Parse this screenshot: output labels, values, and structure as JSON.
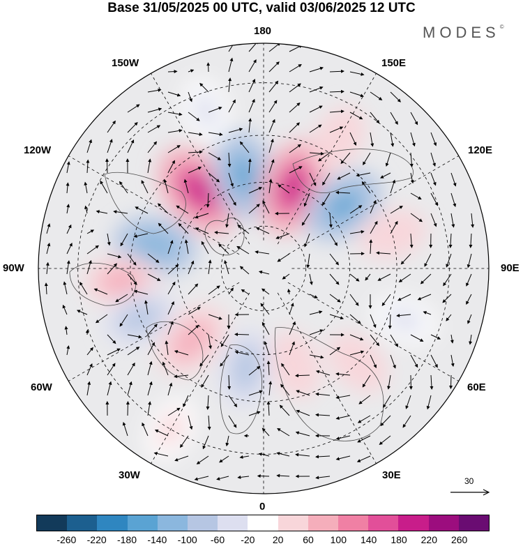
{
  "title": "Base 31/05/2025 00 UTC, valid 03/06/2025 12 UTC",
  "brand": "MODES",
  "brand_mark": "©",
  "longitude_labels": {
    "n180": "180",
    "w150": "150W",
    "e150": "150E",
    "w120": "120W",
    "e120": "120E",
    "w90": "90W",
    "e90": "90E",
    "w60": "60W",
    "e60": "60E",
    "w30": "30W",
    "e30": "30E",
    "s0": "0"
  },
  "reference_vector": {
    "label": "30"
  },
  "colorbar": {
    "colors": [
      "#123a5a",
      "#1c5f8f",
      "#2f86c0",
      "#5aa3d3",
      "#8bb7de",
      "#b6c6e3",
      "#dddff0",
      "#ffffff",
      "#f8d6da",
      "#f5aebb",
      "#f080a4",
      "#e24f99",
      "#c81d8a",
      "#9c0d7e",
      "#6a0c72"
    ],
    "ticks": [
      "-260",
      "-220",
      "-180",
      "-140",
      "-100",
      "-60",
      "-20",
      "20",
      "60",
      "100",
      "140",
      "180",
      "220",
      "260"
    ]
  },
  "anomaly_centers": [
    {
      "lon": -140,
      "lat": 55,
      "value": 210
    },
    {
      "lon": -168,
      "lat": 57,
      "value": -170
    },
    {
      "lon": 160,
      "lat": 60,
      "value": 200
    },
    {
      "lon": 128,
      "lat": 55,
      "value": -150
    },
    {
      "lon": 105,
      "lat": 45,
      "value": 60
    },
    {
      "lon": -102,
      "lat": 52,
      "value": -140
    },
    {
      "lon": -85,
      "lat": 42,
      "value": 80
    },
    {
      "lon": -68,
      "lat": 45,
      "value": -90
    },
    {
      "lon": -45,
      "lat": 55,
      "value": 120
    },
    {
      "lon": -10,
      "lat": 55,
      "value": -110
    },
    {
      "lon": 18,
      "lat": 55,
      "value": 60
    },
    {
      "lon": 45,
      "lat": 45,
      "value": 60
    },
    {
      "lon": 70,
      "lat": 40,
      "value": -40
    },
    {
      "lon": -30,
      "lat": 30,
      "value": 40
    },
    {
      "lon": -160,
      "lat": 35,
      "value": -40
    },
    {
      "lon": 150,
      "lat": 40,
      "value": 60
    }
  ]
}
